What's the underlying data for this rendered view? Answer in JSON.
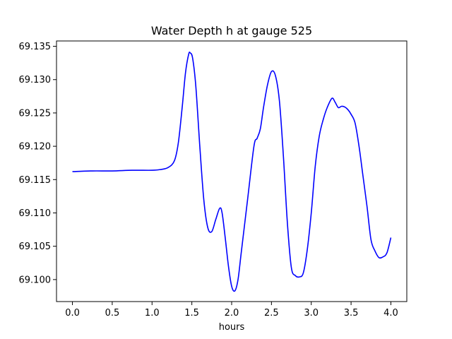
{
  "chart_data": {
    "type": "line",
    "title": "Water Depth h at gauge 525",
    "xlabel": "hours",
    "ylabel": "",
    "xlim": [
      -0.2,
      4.2
    ],
    "ylim": [
      69.0967,
      69.1358
    ],
    "xticks": [
      0.0,
      0.5,
      1.0,
      1.5,
      2.0,
      2.5,
      3.0,
      3.5,
      4.0
    ],
    "xtick_labels": [
      "0.0",
      "0.5",
      "1.0",
      "1.5",
      "2.0",
      "2.5",
      "3.0",
      "3.5",
      "4.0"
    ],
    "yticks": [
      69.1,
      69.105,
      69.11,
      69.115,
      69.12,
      69.125,
      69.13,
      69.135
    ],
    "ytick_labels": [
      "69.100",
      "69.105",
      "69.110",
      "69.115",
      "69.120",
      "69.125",
      "69.130",
      "69.135"
    ],
    "grid": false,
    "series": [
      {
        "color": "#0000ff",
        "x": [
          0.0,
          0.25,
          0.5,
          0.75,
          1.0,
          1.1,
          1.2,
          1.28,
          1.33,
          1.38,
          1.42,
          1.46,
          1.48,
          1.51,
          1.55,
          1.6,
          1.65,
          1.7,
          1.75,
          1.8,
          1.85,
          1.88,
          1.92,
          1.96,
          2.0,
          2.04,
          2.08,
          2.12,
          2.2,
          2.28,
          2.32,
          2.36,
          2.4,
          2.45,
          2.5,
          2.55,
          2.6,
          2.65,
          2.7,
          2.75,
          2.8,
          2.85,
          2.9,
          2.95,
          3.0,
          3.05,
          3.1,
          3.15,
          3.2,
          3.26,
          3.3,
          3.34,
          3.38,
          3.42,
          3.46,
          3.5,
          3.55,
          3.6,
          3.65,
          3.7,
          3.75,
          3.8,
          3.85,
          3.9,
          3.95,
          4.0
        ],
        "y": [
          69.1162,
          69.1163,
          69.1163,
          69.1164,
          69.1164,
          69.1165,
          69.1168,
          69.1178,
          69.1205,
          69.126,
          69.131,
          69.1338,
          69.134,
          69.1332,
          69.129,
          69.12,
          69.112,
          69.1078,
          69.1072,
          69.109,
          69.1107,
          69.11,
          69.1062,
          69.102,
          69.099,
          69.0983,
          69.1,
          69.104,
          69.112,
          69.12,
          69.1212,
          69.1226,
          69.1258,
          69.1292,
          69.1312,
          69.1306,
          69.1268,
          69.1185,
          69.1085,
          69.1018,
          69.1006,
          69.1004,
          69.101,
          69.1045,
          69.11,
          69.117,
          69.1215,
          69.124,
          69.1258,
          69.1272,
          69.1266,
          69.1258,
          69.126,
          69.1259,
          69.1255,
          69.1248,
          69.1235,
          69.12,
          69.1155,
          69.111,
          69.106,
          69.1043,
          69.1033,
          69.1034,
          69.104,
          69.1063
        ]
      }
    ]
  }
}
